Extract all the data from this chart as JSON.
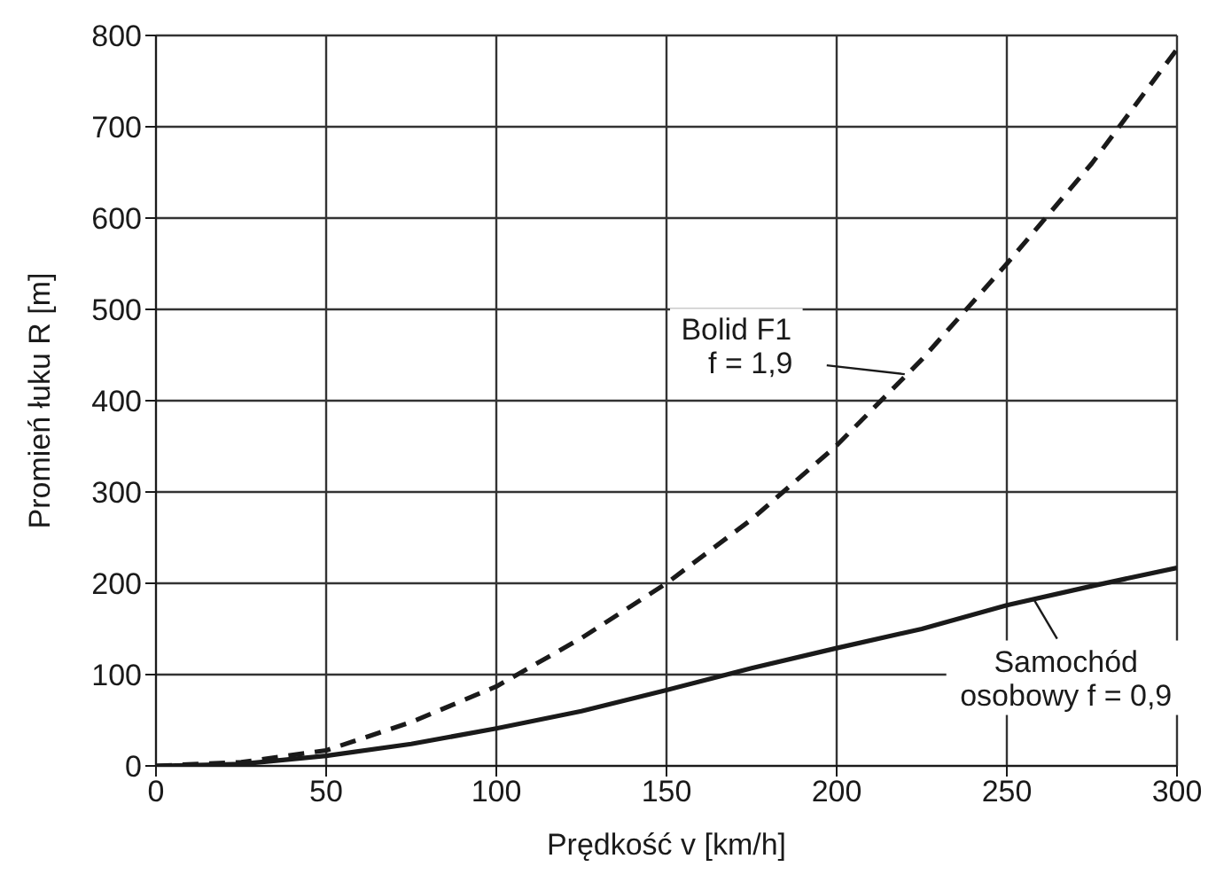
{
  "chart_data": {
    "type": "line",
    "xlabel": "Prędkość v [km/h]",
    "ylabel": "Promień łuku R [m]",
    "xlim": [
      0,
      300
    ],
    "xticks": [
      0,
      50,
      100,
      150,
      200,
      250,
      300
    ],
    "ylim": [
      0,
      800
    ],
    "yticks": [
      0,
      100,
      200,
      300,
      400,
      500,
      600,
      700,
      800
    ],
    "grid": true,
    "marker": "none",
    "series": [
      {
        "color": "#1a1a1a",
        "line_style": "dashed",
        "x": [
          0,
          25,
          50,
          75,
          100,
          125,
          150,
          175,
          200,
          225,
          250,
          275,
          300
        ],
        "values": [
          0,
          4,
          17,
          48,
          87,
          140,
          200,
          270,
          351,
          445,
          550,
          660,
          785
        ]
      },
      {
        "color": "#1a1a1a",
        "line_style": "solid",
        "x": [
          0,
          25,
          50,
          75,
          100,
          125,
          150,
          175,
          200,
          225,
          250,
          275,
          300
        ],
        "values": [
          0,
          2,
          11,
          24,
          41,
          60,
          83,
          107,
          129,
          150,
          176,
          197,
          217
        ]
      }
    ],
    "annotations": [
      {
        "text": "Bolid F1\nf = 1,9",
        "x": 220,
        "y": 429
      },
      {
        "text": "Samochód\nosobowy f = 0,9",
        "x": 258,
        "y": 182
      }
    ]
  }
}
